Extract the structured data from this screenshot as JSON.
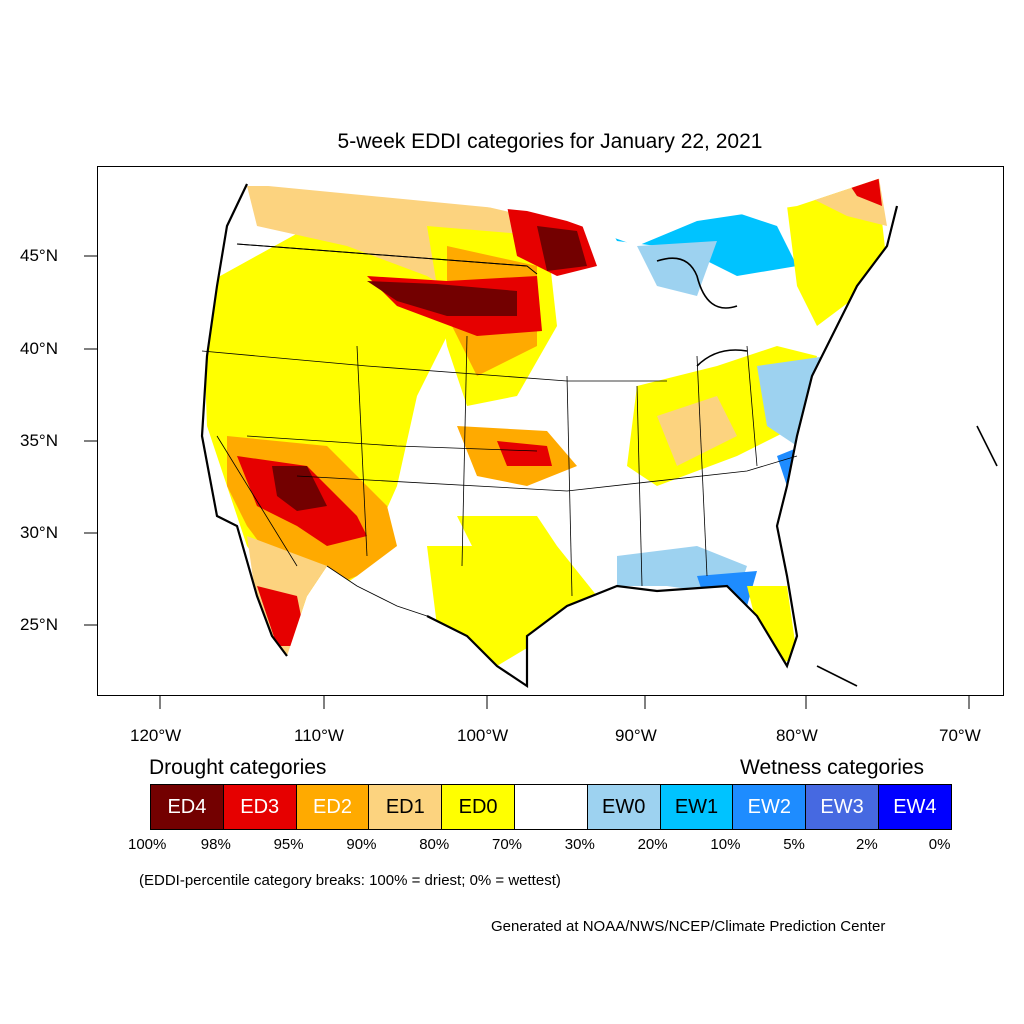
{
  "title": "5-week EDDI categories for January 22, 2021",
  "latitude_labels": [
    "45°N",
    "40°N",
    "35°N",
    "30°N",
    "25°N"
  ],
  "longitude_labels": [
    "120°W",
    "110°W",
    "100°W",
    "90°W",
    "80°W",
    "70°W"
  ],
  "legend": {
    "drought_heading": "Drought categories",
    "wetness_heading": "Wetness categories",
    "categories": [
      {
        "label": "ED4",
        "color": "#730000",
        "text_color": "#ffffff"
      },
      {
        "label": "ED3",
        "color": "#e60000",
        "text_color": "#ffffff"
      },
      {
        "label": "ED2",
        "color": "#ffaa00",
        "text_color": "#ffffff"
      },
      {
        "label": "ED1",
        "color": "#fcd37f",
        "text_color": "#000000"
      },
      {
        "label": "ED0",
        "color": "#ffff00",
        "text_color": "#000000"
      },
      {
        "label": "",
        "color": "#ffffff",
        "text_color": "#000000"
      },
      {
        "label": "EW0",
        "color": "#9dd2f0",
        "text_color": "#000000"
      },
      {
        "label": "EW1",
        "color": "#00c3ff",
        "text_color": "#000000"
      },
      {
        "label": "EW2",
        "color": "#1e8cff",
        "text_color": "#ffffff"
      },
      {
        "label": "EW3",
        "color": "#4669e1",
        "text_color": "#ffffff"
      },
      {
        "label": "EW4",
        "color": "#0000ff",
        "text_color": "#ffffff"
      }
    ],
    "breaks": [
      "100%",
      "98%",
      "95%",
      "90%",
      "80%",
      "70%",
      "30%",
      "20%",
      "10%",
      "5%",
      "2%",
      "0%"
    ]
  },
  "note": "(EDDI-percentile category breaks: 100% = driest; 0% = wettest)",
  "credit": "Generated at NOAA/NWS/NCEP/Climate Prediction Center"
}
